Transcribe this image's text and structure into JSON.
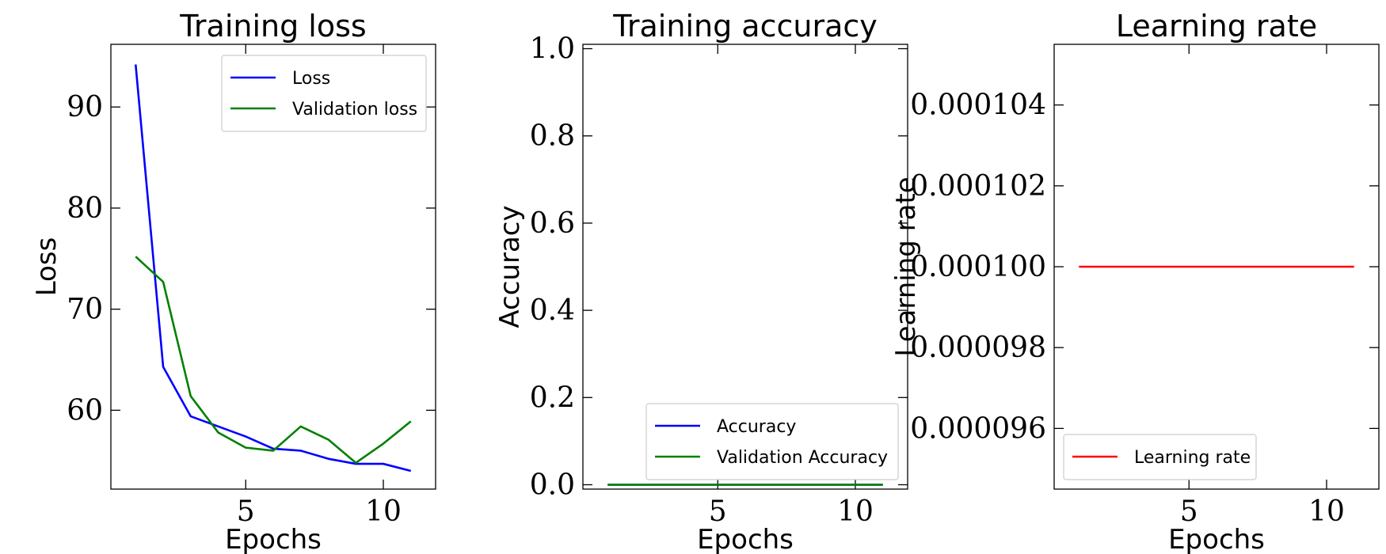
{
  "chart_data": [
    {
      "type": "line",
      "title": "Training loss",
      "xlabel": "Epochs",
      "ylabel": "Loss",
      "xlim": [
        0.1,
        11.9
      ],
      "ylim": [
        52.2,
        96.2
      ],
      "xticks": [
        5,
        10
      ],
      "xtick_labels": [
        "5",
        "10"
      ],
      "yticks": [
        60,
        70,
        80,
        90
      ],
      "ytick_labels": [
        "60",
        "70",
        "80",
        "90"
      ],
      "legend_loc": "upper-right",
      "x": [
        1,
        2,
        3,
        4,
        5,
        6,
        7,
        8,
        9,
        10,
        11
      ],
      "series": [
        {
          "name": "Loss",
          "color": "#0000ff",
          "values": [
            94.2,
            64.3,
            59.4,
            58.4,
            57.4,
            56.2,
            56.0,
            55.2,
            54.7,
            54.7,
            54.0
          ]
        },
        {
          "name": "Validation loss",
          "color": "#008000",
          "values": [
            75.2,
            72.7,
            61.4,
            57.8,
            56.3,
            56.0,
            58.4,
            57.1,
            54.8,
            56.7,
            58.9
          ]
        }
      ]
    },
    {
      "type": "line",
      "title": "Training accuracy",
      "xlabel": "Epochs",
      "ylabel": "Accuracy",
      "xlim": [
        0.1,
        11.9
      ],
      "ylim": [
        -0.01,
        1.01
      ],
      "xticks": [
        5,
        10
      ],
      "xtick_labels": [
        "5",
        "10"
      ],
      "yticks": [
        0.0,
        0.2,
        0.4,
        0.6,
        0.8,
        1.0
      ],
      "ytick_labels": [
        "0.0",
        "0.2",
        "0.4",
        "0.6",
        "0.8",
        "1.0"
      ],
      "legend_loc": "lower-right",
      "x": [
        1,
        2,
        3,
        4,
        5,
        6,
        7,
        8,
        9,
        10,
        11
      ],
      "series": [
        {
          "name": "Accuracy",
          "color": "#0000ff",
          "values": [
            0,
            0,
            0,
            0,
            0,
            0,
            0,
            0,
            0,
            0,
            0
          ]
        },
        {
          "name": "Validation Accuracy",
          "color": "#008000",
          "values": [
            0,
            0,
            0,
            0,
            0,
            0,
            0,
            0,
            0,
            0,
            0
          ]
        }
      ]
    },
    {
      "type": "line",
      "title": "Learning rate",
      "xlabel": "Epochs",
      "ylabel": "Learning rate",
      "xlim": [
        0.1,
        11.9
      ],
      "ylim": [
        9.45e-05,
        0.0001055
      ],
      "xticks": [
        5,
        10
      ],
      "xtick_labels": [
        "5",
        "10"
      ],
      "yticks": [
        9.6e-05,
        9.8e-05,
        0.0001,
        0.000102,
        0.000104
      ],
      "ytick_labels": [
        "0.000096",
        "0.000098",
        "0.000100",
        "0.000102",
        "0.000104"
      ],
      "legend_loc": "lower-left",
      "x": [
        1,
        2,
        3,
        4,
        5,
        6,
        7,
        8,
        9,
        10,
        11
      ],
      "series": [
        {
          "name": "Learning rate",
          "color": "#ff0000",
          "values": [
            0.0001,
            0.0001,
            0.0001,
            0.0001,
            0.0001,
            0.0001,
            0.0001,
            0.0001,
            0.0001,
            0.0001,
            0.0001
          ]
        }
      ]
    }
  ]
}
